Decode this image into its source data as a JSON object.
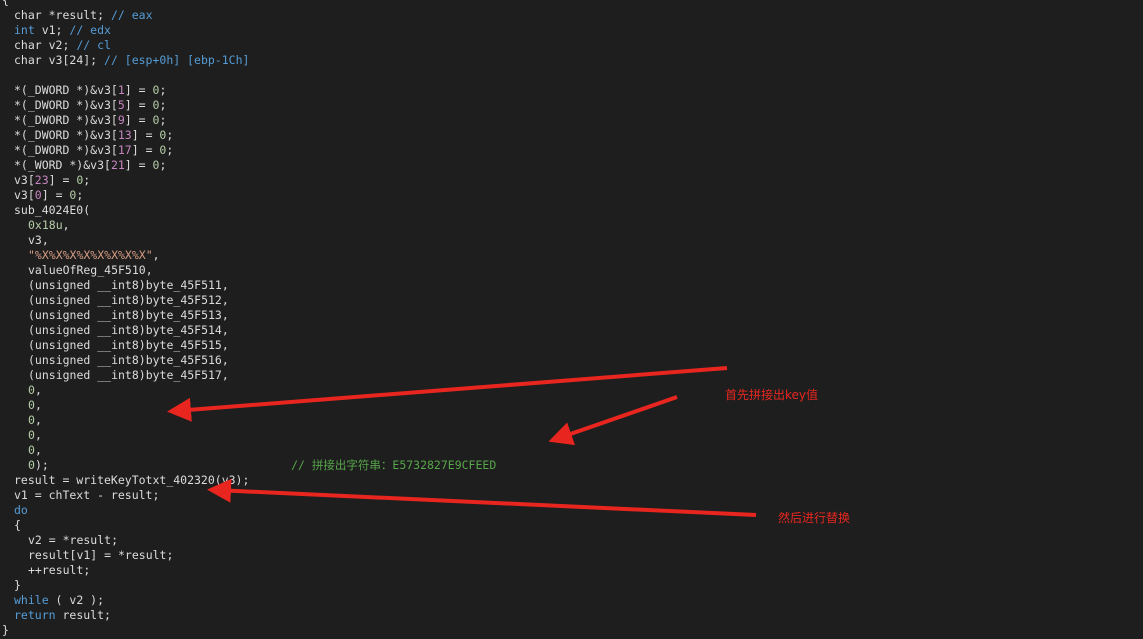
{
  "code_lines": [
    {
      "indent": 0,
      "segs": [
        {
          "t": "{",
          "c": "p"
        }
      ]
    },
    {
      "indent": 1,
      "segs": [
        {
          "t": "char",
          "c": "p"
        },
        {
          "t": " *result; ",
          "c": "p"
        },
        {
          "t": "// eax",
          "c": "kw"
        }
      ]
    },
    {
      "indent": 1,
      "segs": [
        {
          "t": "int",
          "c": "kw"
        },
        {
          "t": " v1; ",
          "c": "p"
        },
        {
          "t": "// edx",
          "c": "kw"
        }
      ]
    },
    {
      "indent": 1,
      "segs": [
        {
          "t": "char",
          "c": "p"
        },
        {
          "t": " v2; ",
          "c": "p"
        },
        {
          "t": "// cl",
          "c": "kw"
        }
      ]
    },
    {
      "indent": 1,
      "segs": [
        {
          "t": "char",
          "c": "p"
        },
        {
          "t": " v3[24]; ",
          "c": "p"
        },
        {
          "t": "// [esp+0h] [ebp-1Ch]",
          "c": "kw"
        }
      ]
    },
    {
      "indent": 0,
      "segs": []
    },
    {
      "indent": 1,
      "segs": [
        {
          "t": "*(_DWORD *)&v3[",
          "c": "p"
        },
        {
          "t": "1",
          "c": "idx"
        },
        {
          "t": "] = ",
          "c": "p"
        },
        {
          "t": "0",
          "c": "num"
        },
        {
          "t": ";",
          "c": "p"
        }
      ]
    },
    {
      "indent": 1,
      "segs": [
        {
          "t": "*(_DWORD *)&v3[",
          "c": "p"
        },
        {
          "t": "5",
          "c": "idx"
        },
        {
          "t": "] = ",
          "c": "p"
        },
        {
          "t": "0",
          "c": "num"
        },
        {
          "t": ";",
          "c": "p"
        }
      ]
    },
    {
      "indent": 1,
      "segs": [
        {
          "t": "*(_DWORD *)&v3[",
          "c": "p"
        },
        {
          "t": "9",
          "c": "idx"
        },
        {
          "t": "] = ",
          "c": "p"
        },
        {
          "t": "0",
          "c": "num"
        },
        {
          "t": ";",
          "c": "p"
        }
      ]
    },
    {
      "indent": 1,
      "segs": [
        {
          "t": "*(_DWORD *)&v3[",
          "c": "p"
        },
        {
          "t": "13",
          "c": "idx"
        },
        {
          "t": "] = ",
          "c": "p"
        },
        {
          "t": "0",
          "c": "num"
        },
        {
          "t": ";",
          "c": "p"
        }
      ]
    },
    {
      "indent": 1,
      "segs": [
        {
          "t": "*(_DWORD *)&v3[",
          "c": "p"
        },
        {
          "t": "17",
          "c": "idx"
        },
        {
          "t": "] = ",
          "c": "p"
        },
        {
          "t": "0",
          "c": "num"
        },
        {
          "t": ";",
          "c": "p"
        }
      ]
    },
    {
      "indent": 1,
      "segs": [
        {
          "t": "*(_WORD *)&v3[",
          "c": "p"
        },
        {
          "t": "21",
          "c": "idx"
        },
        {
          "t": "] = ",
          "c": "p"
        },
        {
          "t": "0",
          "c": "num"
        },
        {
          "t": ";",
          "c": "p"
        }
      ]
    },
    {
      "indent": 1,
      "segs": [
        {
          "t": "v3[",
          "c": "p"
        },
        {
          "t": "23",
          "c": "idx"
        },
        {
          "t": "] = ",
          "c": "p"
        },
        {
          "t": "0",
          "c": "num"
        },
        {
          "t": ";",
          "c": "p"
        }
      ]
    },
    {
      "indent": 1,
      "segs": [
        {
          "t": "v3[",
          "c": "p"
        },
        {
          "t": "0",
          "c": "idx"
        },
        {
          "t": "] = ",
          "c": "p"
        },
        {
          "t": "0",
          "c": "num"
        },
        {
          "t": ";",
          "c": "p"
        }
      ]
    },
    {
      "indent": 1,
      "segs": [
        {
          "t": "sub_4024E0(",
          "c": "p"
        }
      ]
    },
    {
      "indent": 2,
      "segs": [
        {
          "t": "0x18u",
          "c": "num"
        },
        {
          "t": ",",
          "c": "p"
        }
      ]
    },
    {
      "indent": 2,
      "segs": [
        {
          "t": "v3,",
          "c": "p"
        }
      ]
    },
    {
      "indent": 2,
      "segs": [
        {
          "t": "\"%X%X%X%X%X%X%X%X\"",
          "c": "str"
        },
        {
          "t": ",",
          "c": "p"
        }
      ]
    },
    {
      "indent": 2,
      "segs": [
        {
          "t": "valueOfReg_45F510,",
          "c": "p"
        }
      ]
    },
    {
      "indent": 2,
      "segs": [
        {
          "t": "(unsigned __int8)byte_45F511,",
          "c": "p"
        }
      ]
    },
    {
      "indent": 2,
      "segs": [
        {
          "t": "(unsigned __int8)byte_45F512,",
          "c": "p"
        }
      ]
    },
    {
      "indent": 2,
      "segs": [
        {
          "t": "(unsigned __int8)byte_45F513,",
          "c": "p"
        }
      ]
    },
    {
      "indent": 2,
      "segs": [
        {
          "t": "(unsigned __int8)byte_45F514,",
          "c": "p"
        }
      ]
    },
    {
      "indent": 2,
      "segs": [
        {
          "t": "(unsigned __int8)byte_45F515,",
          "c": "p"
        }
      ]
    },
    {
      "indent": 2,
      "segs": [
        {
          "t": "(unsigned __int8)byte_45F516,",
          "c": "p"
        }
      ]
    },
    {
      "indent": 2,
      "segs": [
        {
          "t": "(unsigned __int8)byte_45F517,",
          "c": "p"
        }
      ]
    },
    {
      "indent": 2,
      "segs": [
        {
          "t": "0",
          "c": "num"
        },
        {
          "t": ",",
          "c": "p"
        }
      ]
    },
    {
      "indent": 2,
      "segs": [
        {
          "t": "0",
          "c": "num"
        },
        {
          "t": ",",
          "c": "p"
        }
      ]
    },
    {
      "indent": 2,
      "segs": [
        {
          "t": "0",
          "c": "num"
        },
        {
          "t": ",",
          "c": "p"
        }
      ]
    },
    {
      "indent": 2,
      "segs": [
        {
          "t": "0",
          "c": "num"
        },
        {
          "t": ",",
          "c": "p"
        }
      ]
    },
    {
      "indent": 2,
      "segs": [
        {
          "t": "0",
          "c": "num"
        },
        {
          "t": ",",
          "c": "p"
        }
      ]
    },
    {
      "indent": 2,
      "segs": [
        {
          "t": "0",
          "c": "num"
        },
        {
          "t": ");",
          "c": "p"
        },
        {
          "t": "                                   // 拼接出字符串：E5732827E9CFEED",
          "c": "cm"
        }
      ]
    },
    {
      "indent": 1,
      "segs": [
        {
          "t": "result = writeKeyTotxt_402320(v3);",
          "c": "p"
        }
      ]
    },
    {
      "indent": 1,
      "segs": [
        {
          "t": "v1 = chText - result;",
          "c": "p"
        }
      ]
    },
    {
      "indent": 1,
      "segs": [
        {
          "t": "do",
          "c": "kw"
        }
      ]
    },
    {
      "indent": 1,
      "segs": [
        {
          "t": "{",
          "c": "p"
        }
      ]
    },
    {
      "indent": 2,
      "segs": [
        {
          "t": "v2 = *result;",
          "c": "p"
        }
      ]
    },
    {
      "indent": 2,
      "segs": [
        {
          "t": "result[v1] = *result;",
          "c": "p"
        }
      ]
    },
    {
      "indent": 2,
      "segs": [
        {
          "t": "++result;",
          "c": "p"
        }
      ]
    },
    {
      "indent": 1,
      "segs": [
        {
          "t": "}",
          "c": "p"
        }
      ]
    },
    {
      "indent": 1,
      "segs": [
        {
          "t": "while",
          "c": "kw"
        },
        {
          "t": " ( v2 );",
          "c": "p"
        }
      ]
    },
    {
      "indent": 1,
      "segs": [
        {
          "t": "return",
          "c": "kw"
        },
        {
          "t": " result;",
          "c": "p"
        }
      ]
    },
    {
      "indent": 0,
      "segs": [
        {
          "t": "}",
          "c": "p"
        }
      ]
    }
  ],
  "annotations": {
    "note1": "首先拼接出key值",
    "note2": "然后进行替换"
  },
  "colors": {
    "background": "#1e1e1e",
    "plain": "#dcdcdc",
    "keyword": "#569cd6",
    "comment": "#57a64a",
    "number": "#b5cea8",
    "string": "#d69d85",
    "index": "#c586c0",
    "arrow": "#e8261f"
  }
}
